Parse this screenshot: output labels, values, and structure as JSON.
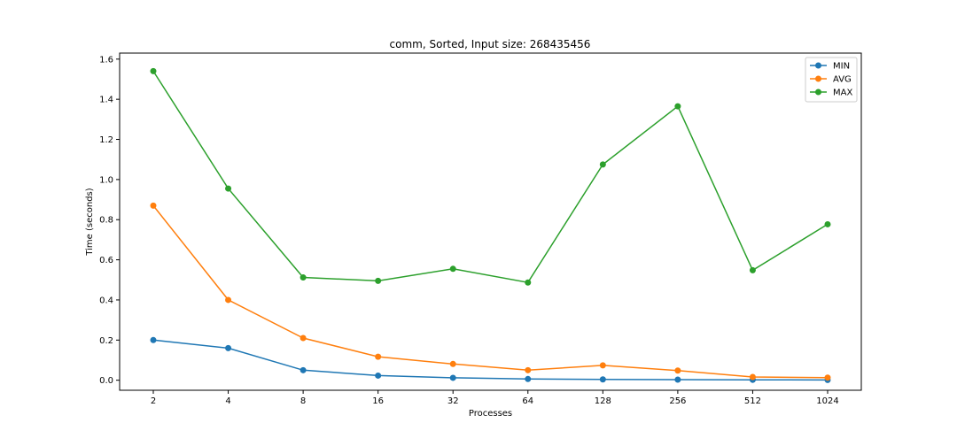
{
  "chart_data": {
    "type": "line",
    "title": "comm, Sorted, Input size: 268435456",
    "xlabel": "Processes",
    "ylabel": "Time (seconds)",
    "categories": [
      "2",
      "4",
      "8",
      "16",
      "32",
      "64",
      "128",
      "256",
      "512",
      "1024"
    ],
    "ylim": [
      -0.05,
      1.63
    ],
    "yticks": [
      0.0,
      0.2,
      0.4,
      0.6,
      0.8,
      1.0,
      1.2,
      1.4,
      1.6
    ],
    "ytick_labels": [
      "0.0",
      "0.2",
      "0.4",
      "0.6",
      "0.8",
      "1.0",
      "1.2",
      "1.4",
      "1.6"
    ],
    "grid": false,
    "legend": "top-right",
    "series": [
      {
        "name": "MIN",
        "color": "#1f77b4",
        "values": [
          0.2,
          0.16,
          0.05,
          0.023,
          0.012,
          0.006,
          0.004,
          0.003,
          0.002,
          0.001
        ]
      },
      {
        "name": "AVG",
        "color": "#ff7f0e",
        "values": [
          0.87,
          0.4,
          0.21,
          0.117,
          0.081,
          0.05,
          0.074,
          0.048,
          0.016,
          0.013
        ]
      },
      {
        "name": "MAX",
        "color": "#2ca02c",
        "values": [
          1.54,
          0.955,
          0.512,
          0.495,
          0.555,
          0.487,
          1.075,
          1.365,
          0.548,
          0.777
        ]
      }
    ]
  }
}
